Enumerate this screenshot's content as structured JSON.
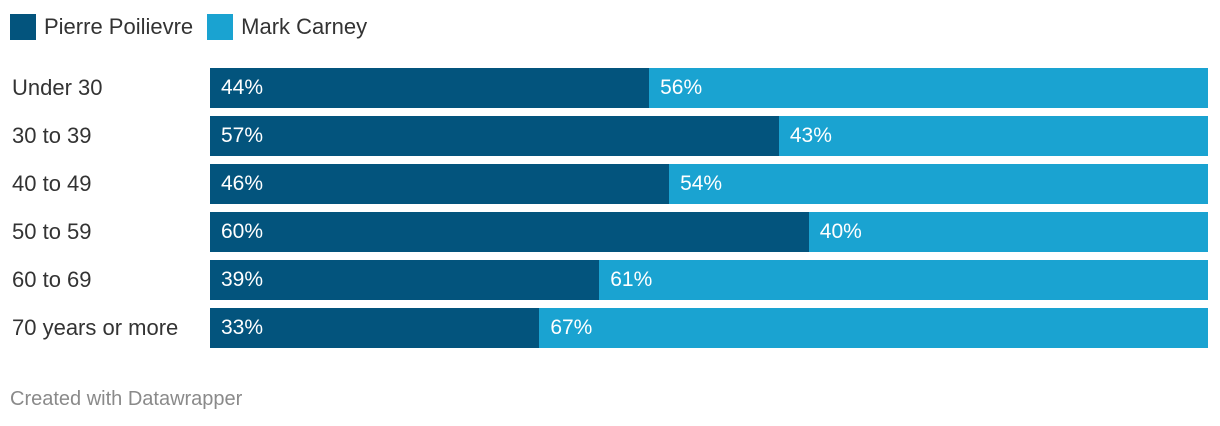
{
  "chart_data": {
    "type": "bar",
    "orientation": "horizontal",
    "stacked": true,
    "categories": [
      "Under 30",
      "30 to 39",
      "40 to 49",
      "50 to 59",
      "60 to 69",
      "70 years or more"
    ],
    "series": [
      {
        "name": "Pierre Poilievre",
        "color": "#03547d",
        "values": [
          44,
          57,
          46,
          60,
          39,
          33
        ],
        "labels": [
          "44%",
          "57%",
          "46%",
          "60%",
          "39%",
          "33%"
        ]
      },
      {
        "name": "Mark Carney",
        "color": "#1aa3d1",
        "values": [
          56,
          43,
          54,
          40,
          61,
          67
        ],
        "labels": [
          "56%",
          "43%",
          "54%",
          "40%",
          "61%",
          "67%"
        ]
      }
    ],
    "xlim": [
      0,
      100
    ],
    "legend_position": "top-left",
    "grid": false
  },
  "footer": {
    "credit": "Created with Datawrapper"
  }
}
